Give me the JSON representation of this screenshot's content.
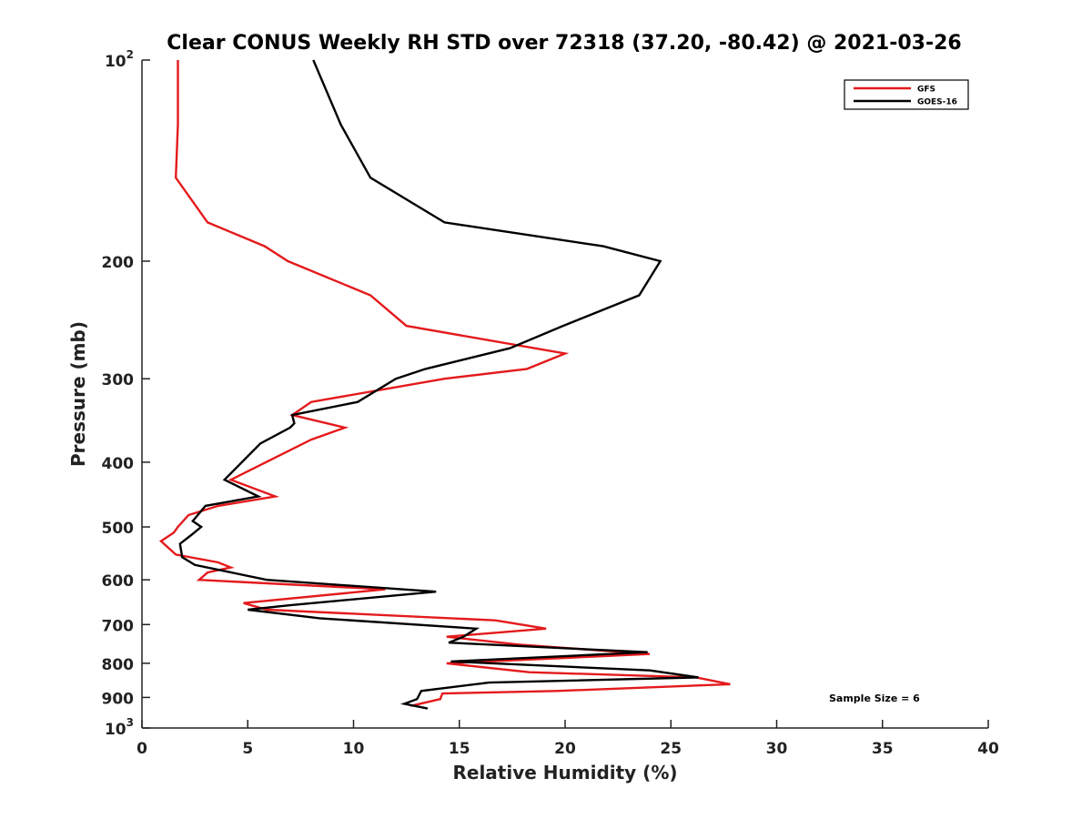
{
  "chart_data": {
    "type": "line",
    "title": "Clear CONUS Weekly RH STD over 72318 (37.20, -80.42) @ 2021-03-26",
    "xlabel": "Relative Humidity (%)",
    "ylabel": "Pressure (mb)",
    "xlim": [
      0,
      40
    ],
    "ylim": [
      100,
      1000
    ],
    "y_scale": "log",
    "y_reversed": true,
    "grid": false,
    "legend_position": "top-right",
    "x_ticks": [
      {
        "value": 0,
        "label": "0"
      },
      {
        "value": 5,
        "label": "5"
      },
      {
        "value": 10,
        "label": "10"
      },
      {
        "value": 15,
        "label": "15"
      },
      {
        "value": 20,
        "label": "20"
      },
      {
        "value": 25,
        "label": "25"
      },
      {
        "value": 30,
        "label": "30"
      },
      {
        "value": 35,
        "label": "35"
      },
      {
        "value": 40,
        "label": "40"
      }
    ],
    "y_ticks": [
      {
        "value": 100,
        "label": "10",
        "sup": "2"
      },
      {
        "value": 200,
        "label": "200",
        "sup": ""
      },
      {
        "value": 300,
        "label": "300",
        "sup": ""
      },
      {
        "value": 400,
        "label": "400",
        "sup": ""
      },
      {
        "value": 500,
        "label": "500",
        "sup": ""
      },
      {
        "value": 600,
        "label": "600",
        "sup": ""
      },
      {
        "value": 700,
        "label": "700",
        "sup": ""
      },
      {
        "value": 800,
        "label": "800",
        "sup": ""
      },
      {
        "value": 900,
        "label": "900",
        "sup": ""
      },
      {
        "value": 1000,
        "label": "10",
        "sup": "3"
      }
    ],
    "series": [
      {
        "name": "GFS",
        "color": "#e41a1c",
        "points": [
          [
            1.7,
            100
          ],
          [
            1.7,
            125
          ],
          [
            1.6,
            150
          ],
          [
            3.1,
            175
          ],
          [
            5.8,
            190
          ],
          [
            6.9,
            200
          ],
          [
            10.8,
            225
          ],
          [
            12.5,
            250
          ],
          [
            20,
            275
          ],
          [
            18.2,
            290
          ],
          [
            14.3,
            300
          ],
          [
            8.0,
            325
          ],
          [
            7.1,
            340
          ],
          [
            9.6,
            355
          ],
          [
            8.0,
            370
          ],
          [
            4.2,
            425
          ],
          [
            6.3,
            450
          ],
          [
            3.6,
            465
          ],
          [
            2.2,
            480
          ],
          [
            1.7,
            500
          ],
          [
            1.5,
            510
          ],
          [
            0.9,
            525
          ],
          [
            1.6,
            550
          ],
          [
            3.6,
            565
          ],
          [
            4.2,
            575
          ],
          [
            3.1,
            585
          ],
          [
            2.7,
            600
          ],
          [
            11.5,
            620
          ],
          [
            4.8,
            650
          ],
          [
            5.9,
            665
          ],
          [
            16.7,
            690
          ],
          [
            19.1,
            710
          ],
          [
            14.4,
            730
          ],
          [
            17.8,
            750
          ],
          [
            24.0,
            775
          ],
          [
            14.4,
            800
          ],
          [
            18.3,
            825
          ],
          [
            26.2,
            840
          ],
          [
            27.8,
            860
          ],
          [
            19.6,
            880
          ],
          [
            14.2,
            888
          ],
          [
            14.1,
            905
          ],
          [
            12.7,
            927
          ]
        ]
      },
      {
        "name": "GOES-16",
        "color": "#000000",
        "points": [
          [
            8.1,
            100
          ],
          [
            9.4,
            125
          ],
          [
            10.8,
            150
          ],
          [
            14.3,
            175
          ],
          [
            21.8,
            190
          ],
          [
            24.5,
            200
          ],
          [
            23.5,
            225
          ],
          [
            19.9,
            250
          ],
          [
            17.4,
            270
          ],
          [
            13.4,
            290
          ],
          [
            12.0,
            300
          ],
          [
            10.2,
            325
          ],
          [
            7.1,
            340
          ],
          [
            7.2,
            350
          ],
          [
            7.0,
            355
          ],
          [
            5.6,
            375
          ],
          [
            3.9,
            425
          ],
          [
            5.5,
            450
          ],
          [
            3.0,
            465
          ],
          [
            2.4,
            490
          ],
          [
            2.8,
            500
          ],
          [
            2.3,
            515
          ],
          [
            1.8,
            530
          ],
          [
            1.9,
            555
          ],
          [
            2.5,
            570
          ],
          [
            5.9,
            600
          ],
          [
            13.9,
            625
          ],
          [
            7.0,
            655
          ],
          [
            5.0,
            665
          ],
          [
            8.4,
            685
          ],
          [
            15.8,
            710
          ],
          [
            15.2,
            730
          ],
          [
            14.5,
            745
          ],
          [
            23.9,
            770
          ],
          [
            14.6,
            795
          ],
          [
            24.0,
            820
          ],
          [
            26.3,
            840
          ],
          [
            16.4,
            855
          ],
          [
            13.2,
            880
          ],
          [
            13.0,
            905
          ],
          [
            12.4,
            920
          ],
          [
            13.5,
            935
          ]
        ]
      }
    ],
    "annotations": [
      "Sample Size = 6"
    ]
  }
}
